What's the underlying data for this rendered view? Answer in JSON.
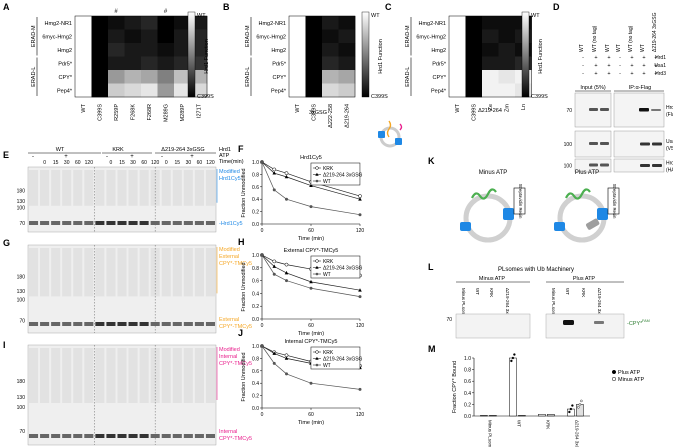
{
  "panels": {
    "A": "A",
    "B": "B",
    "C": "C",
    "D": "D",
    "E": "E",
    "F": "F",
    "G": "G",
    "H": "H",
    "I": "I",
    "J": "J",
    "K": "K",
    "L": "L",
    "M": "M"
  },
  "heatmap": {
    "rows": [
      "Hmg2-NR1",
      "6myc-Hmg2",
      "Hmg2",
      "Pdr5*",
      "CPY*",
      "Pep4*"
    ],
    "group_top": "ERAD-M",
    "group_bottom": "ERAD-L",
    "scale_top": "WT",
    "scale_bottom": "C399S",
    "scale_title": "Hrd1 Function",
    "hash": "#"
  },
  "heatmap_A": {
    "columns": [
      "WT",
      "C399S",
      "R259P",
      "F268K",
      "F268R",
      "M289G",
      "M289P",
      "I271T"
    ],
    "hash_columns": [
      2,
      5
    ],
    "values": [
      [
        0,
        1,
        0.95,
        0.9,
        0.85,
        1,
        0.95,
        0.9
      ],
      [
        0,
        1,
        0.9,
        0.95,
        0.9,
        1,
        0.9,
        0.85
      ],
      [
        0,
        1,
        0.85,
        0.9,
        0.9,
        0.95,
        0.9,
        0.85
      ],
      [
        0,
        1,
        0.9,
        0.9,
        0.85,
        0.9,
        0.85,
        0.8
      ],
      [
        0,
        1,
        0.4,
        0.3,
        0.35,
        0.5,
        0.25,
        0.3
      ],
      [
        0,
        1,
        0.2,
        0.15,
        0.1,
        0.4,
        0.1,
        0.15
      ]
    ]
  },
  "heatmap_B": {
    "columns": [
      "WT",
      "C399S",
      "Δ222-258",
      "Δ219-264",
      "3xGSG"
    ],
    "values": [
      [
        0,
        1,
        0.9,
        0.95
      ],
      [
        0,
        1,
        0.95,
        0.9
      ],
      [
        0,
        1,
        0.9,
        0.95
      ],
      [
        0,
        1,
        0.85,
        0.9
      ],
      [
        0,
        1,
        0.3,
        0.35
      ],
      [
        0,
        1,
        0.15,
        0.2
      ]
    ]
  },
  "heatmap_C": {
    "columns": [
      "WT",
      "C399S",
      "Ze",
      "Zm",
      "Ln",
      "Δ219-264"
    ],
    "values": [
      [
        0,
        1,
        0.95,
        0.95,
        0.95
      ],
      [
        0,
        1,
        0.9,
        0.95,
        0.9
      ],
      [
        0,
        1,
        0.95,
        0.9,
        0.95
      ],
      [
        0,
        1,
        0.9,
        0.9,
        0.85
      ],
      [
        0,
        1,
        0.05,
        0.1,
        0.05
      ],
      [
        0,
        1,
        0.05,
        0.05,
        0.1
      ]
    ]
  },
  "panel_D": {
    "col_labels": [
      "WT",
      "WT (no tag)",
      "WT",
      "Δ219-264 3xGSG"
    ],
    "row_labels": [
      "Hrd1",
      "Usa1",
      "Hrd3"
    ],
    "signs": [
      [
        "-",
        "+",
        "+",
        "+"
      ],
      [
        "-",
        "+",
        "+",
        "+"
      ],
      [
        "+",
        "+",
        "+",
        "+"
      ]
    ],
    "section_left": "Input (5%)",
    "section_right": "IP:α-Flag",
    "band_labels": [
      "Hrd1 (Flag)",
      "Usa1 (V5)",
      "Hrd3 (HA)"
    ],
    "mw": [
      "70",
      "100",
      "100"
    ]
  },
  "gel": {
    "header_groups": [
      "WT",
      "KRK",
      "Δ219-264 3xGSG"
    ],
    "hrd1_label": "Hrd1",
    "atp_label": "ATP",
    "time_label": "Time(min)",
    "signs": [
      "-",
      "+",
      "-",
      "+",
      "-",
      "+"
    ],
    "times": [
      "0",
      "15",
      "30",
      "60",
      "120"
    ],
    "mw": [
      "180",
      "130",
      "100",
      "70"
    ]
  },
  "gel_E": {
    "top_label": "Modified Hrd1Cy5",
    "bottom_label": "Hrd1Cy5",
    "top_color": "#1e88e5",
    "bottom_color": "#1e88e5"
  },
  "gel_G": {
    "top_label": "Modified External CPY*-TMCy5",
    "bottom_label": "External CPY*-TMCy5",
    "top_color": "#f5a623",
    "bottom_color": "#f5a623"
  },
  "gel_I": {
    "top_label": "Modified Internal CPY*-TMCy5",
    "bottom_label": "Internal CPY*-TMCy5",
    "top_color": "#e91e8c",
    "bottom_color": "#e91e8c"
  },
  "line_common": {
    "xlabel": "Time (min)",
    "ylabel": "Fraction Unmodified",
    "x_ticks": [
      "0",
      "60",
      "120"
    ],
    "y_ticks": [
      "0.0",
      "0.2",
      "0.4",
      "0.6",
      "0.8",
      "1.0"
    ],
    "legend": [
      "KRK",
      "Δ219-264 3xGSG",
      "WT"
    ]
  },
  "chart_data": [
    {
      "type": "line",
      "title": "Hrd1Cy5",
      "x": [
        0,
        15,
        30,
        60,
        120
      ],
      "xlim": [
        0,
        120
      ],
      "ylim": [
        0,
        1
      ],
      "series": [
        {
          "name": "KRK",
          "values": [
            1,
            0.88,
            0.82,
            0.68,
            0.45
          ]
        },
        {
          "name": "Δ219-264 3xGSG",
          "values": [
            1,
            0.82,
            0.76,
            0.62,
            0.4
          ]
        },
        {
          "name": "WT",
          "values": [
            1,
            0.55,
            0.4,
            0.28,
            0.15
          ]
        }
      ]
    },
    {
      "type": "line",
      "title": "External CPY*-TMCy5",
      "x": [
        0,
        15,
        30,
        60,
        120
      ],
      "xlim": [
        0,
        120
      ],
      "ylim": [
        0,
        1
      ],
      "series": [
        {
          "name": "KRK",
          "values": [
            1,
            0.9,
            0.85,
            0.78,
            0.68
          ]
        },
        {
          "name": "Δ219-264 3xGSG",
          "values": [
            1,
            0.82,
            0.72,
            0.58,
            0.45
          ]
        },
        {
          "name": "WT",
          "values": [
            1,
            0.7,
            0.6,
            0.48,
            0.35
          ]
        }
      ]
    },
    {
      "type": "line",
      "title": "Internal CPY*-TMCy5",
      "x": [
        0,
        15,
        30,
        60,
        120
      ],
      "xlim": [
        0,
        120
      ],
      "ylim": [
        0,
        1
      ],
      "series": [
        {
          "name": "KRK",
          "values": [
            1,
            0.9,
            0.85,
            0.75,
            0.68
          ]
        },
        {
          "name": "Δ219-264 3xGSG",
          "values": [
            1,
            0.88,
            0.8,
            0.72,
            0.65
          ]
        },
        {
          "name": "WT",
          "values": [
            1,
            0.72,
            0.55,
            0.4,
            0.3
          ]
        }
      ]
    },
    {
      "type": "bar",
      "ylabel": "Fraction CPY* Bound",
      "categories": [
        "Minus PLsomes",
        "WT",
        "KRK",
        "Δ219-264 3xGSG"
      ],
      "ylim": [
        0,
        1
      ],
      "y_ticks": [
        "0.0",
        "0.2",
        "0.4",
        "0.6",
        "0.8",
        "1.0"
      ],
      "series": [
        {
          "name": "Plus ATP",
          "values": [
            0.01,
            1.0,
            0.03,
            0.12
          ]
        },
        {
          "name": "Minus ATP",
          "values": [
            0.01,
            0.01,
            0.03,
            0.2
          ]
        }
      ]
    }
  ],
  "panel_K": {
    "minus": "Minus ATP",
    "plus": "Plus ATP",
    "resin": "Streptavidin Resin"
  },
  "panel_L": {
    "title": "PLsomes with Ub Machinery",
    "minus": "Minus ATP",
    "plus": "Plus ATP",
    "lanes": [
      "Minus PLsomes",
      "WT",
      "KRK",
      "Δ219-264 3xGSG"
    ],
    "mw": "70",
    "band": "CPY* FAM"
  },
  "colors": {
    "blue": "#1e88e5",
    "orange": "#f5a623",
    "magenta": "#e91e8c",
    "green": "#4caf50"
  }
}
